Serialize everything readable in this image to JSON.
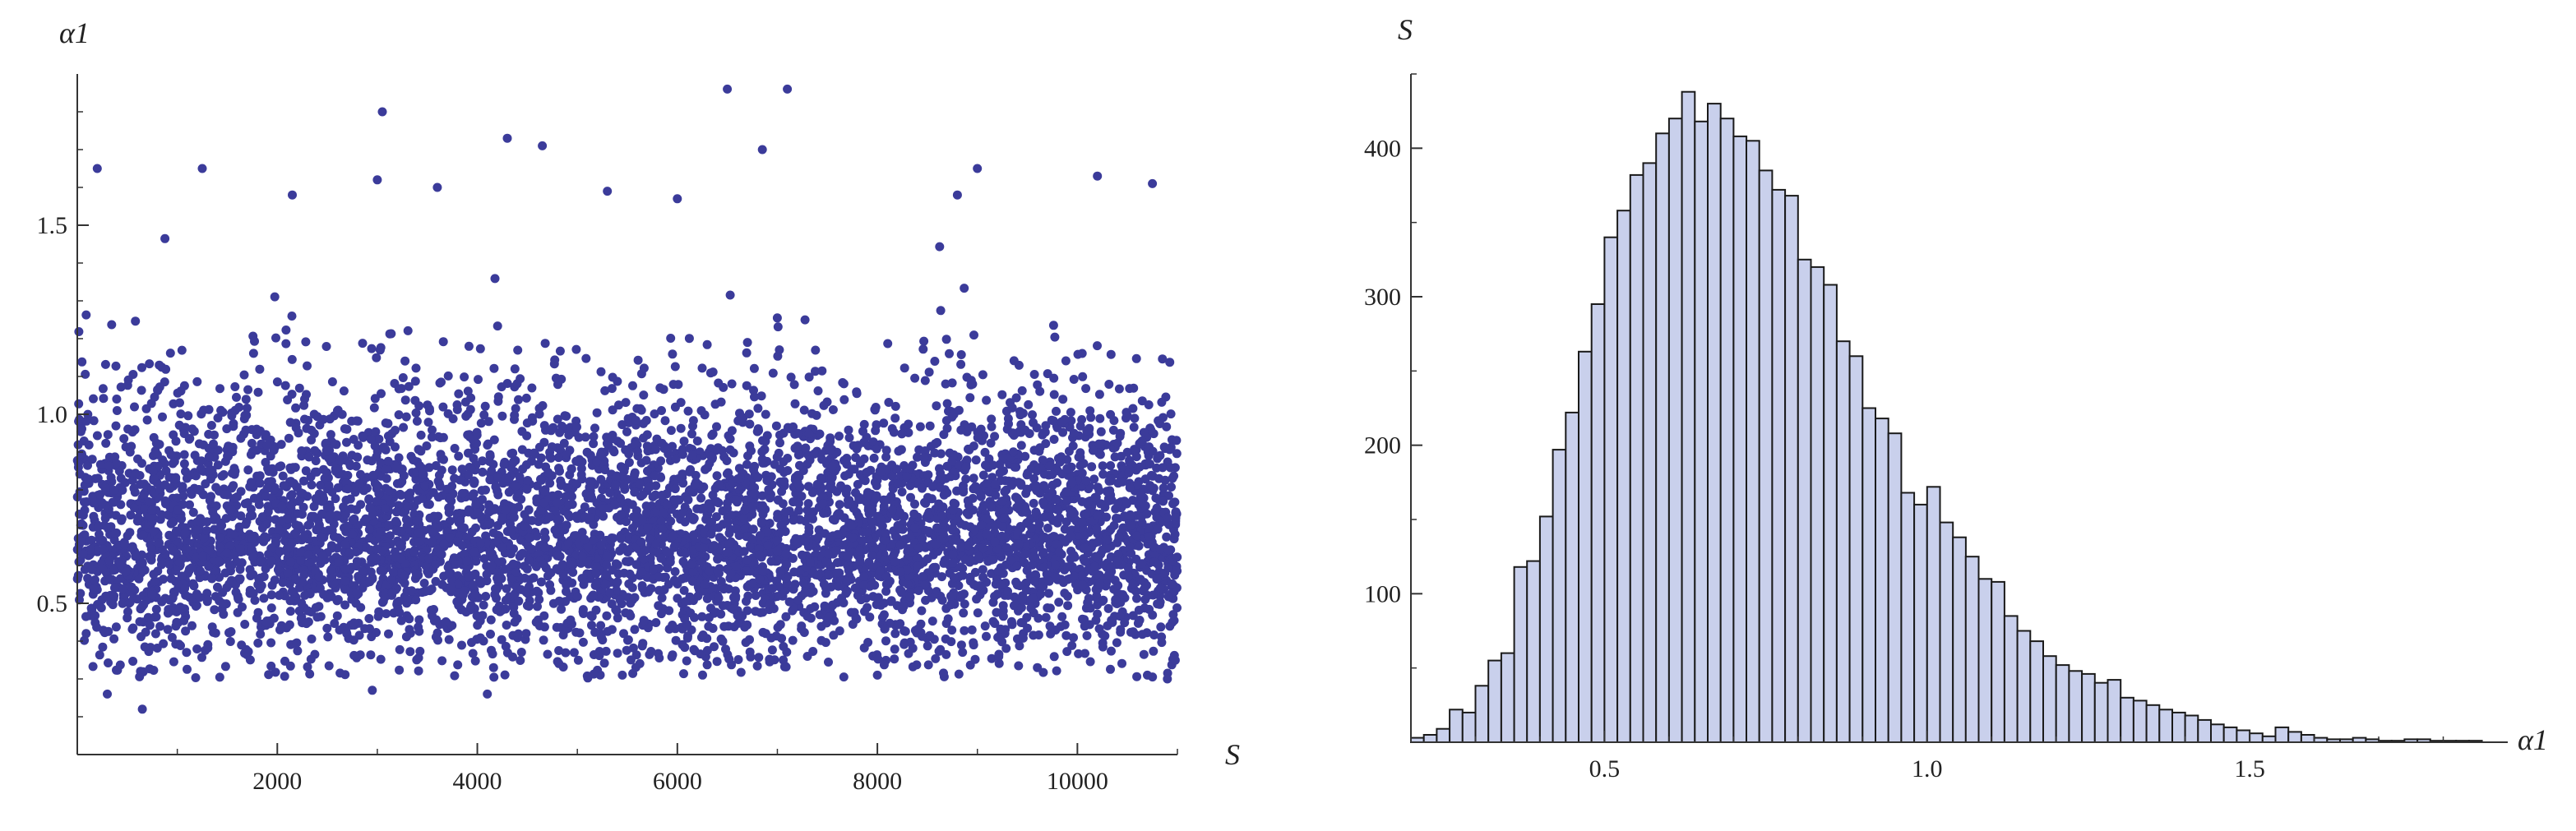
{
  "chart_data": [
    {
      "type": "scatter",
      "title": "",
      "xlabel": "S",
      "ylabel": "α1",
      "xlim": [
        0,
        11000
      ],
      "ylim": [
        0.1,
        1.9
      ],
      "xticks": [
        2000,
        4000,
        6000,
        8000,
        10000
      ],
      "xtick_labels": [
        "2000",
        "4000",
        "6000",
        "8000",
        "10000"
      ],
      "yticks": [
        0.5,
        1.0,
        1.5
      ],
      "ytick_labels": [
        "0.5",
        "1.0",
        "1.5"
      ],
      "grid": false,
      "point_color": "#3b3b9a",
      "n_points": 11000,
      "distribution": {
        "mode": 0.68,
        "mean": 0.75,
        "min": 0.2,
        "max": 1.86
      },
      "notable_points": [
        {
          "x": 6500,
          "y": 1.86
        },
        {
          "x": 7100,
          "y": 1.86
        },
        {
          "x": 3050,
          "y": 1.8
        },
        {
          "x": 4300,
          "y": 1.73
        },
        {
          "x": 4650,
          "y": 1.71
        },
        {
          "x": 6850,
          "y": 1.7
        },
        {
          "x": 1250,
          "y": 1.65
        },
        {
          "x": 200,
          "y": 1.65
        },
        {
          "x": 9000,
          "y": 1.65
        },
        {
          "x": 10200,
          "y": 1.63
        },
        {
          "x": 10750,
          "y": 1.61
        },
        {
          "x": 3000,
          "y": 1.62
        },
        {
          "x": 3600,
          "y": 1.6
        },
        {
          "x": 5300,
          "y": 1.59
        },
        {
          "x": 8800,
          "y": 1.58
        },
        {
          "x": 2150,
          "y": 1.58
        },
        {
          "x": 6000,
          "y": 1.57
        },
        {
          "x": 650,
          "y": 0.22
        },
        {
          "x": 300,
          "y": 0.26
        },
        {
          "x": 2950,
          "y": 0.27
        },
        {
          "x": 4100,
          "y": 0.26
        },
        {
          "x": 5450,
          "y": 0.31
        },
        {
          "x": 8000,
          "y": 0.31
        },
        {
          "x": 10900,
          "y": 0.3
        },
        {
          "x": 10700,
          "y": 0.31
        },
        {
          "x": 9600,
          "y": 0.33
        }
      ]
    },
    {
      "type": "bar",
      "title": "",
      "xlabel": "α1",
      "ylabel": "S",
      "xlim": [
        0.2,
        1.9
      ],
      "ylim": [
        0,
        450
      ],
      "xticks": [
        0.5,
        1.0,
        1.5
      ],
      "xtick_labels": [
        "0.5",
        "1.0",
        "1.5"
      ],
      "yticks": [
        100,
        200,
        300,
        400
      ],
      "ytick_labels": [
        "100",
        "200",
        "300",
        "400"
      ],
      "grid": false,
      "bar_color": "#c9d0ec",
      "bar_edge_color": "#1a1a1a",
      "bin_start": 0.2,
      "bin_width": 0.02,
      "values": [
        3,
        5,
        9,
        22,
        20,
        38,
        55,
        60,
        118,
        122,
        152,
        197,
        222,
        263,
        295,
        340,
        358,
        382,
        390,
        410,
        420,
        438,
        418,
        430,
        420,
        408,
        405,
        385,
        372,
        368,
        325,
        320,
        308,
        270,
        260,
        225,
        218,
        208,
        168,
        160,
        172,
        148,
        138,
        125,
        110,
        108,
        85,
        75,
        68,
        58,
        52,
        48,
        46,
        40,
        42,
        30,
        28,
        25,
        22,
        20,
        18,
        15,
        12,
        10,
        8,
        6,
        4,
        10,
        7,
        5,
        3,
        2,
        2,
        3,
        2,
        1,
        1,
        2,
        2,
        1,
        1,
        1,
        1,
        0,
        0
      ]
    }
  ]
}
